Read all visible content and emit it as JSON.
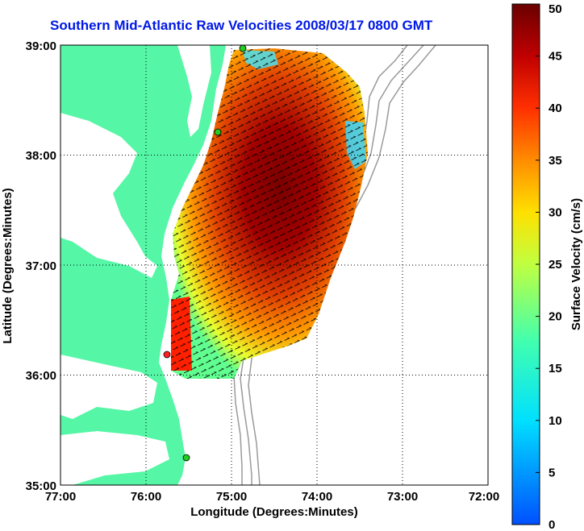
{
  "title": "Southern Mid-Atlantic Raw Velocities 2008/03/17 0800 GMT",
  "axes": {
    "xlabel": "Longitude (Degrees:Minutes)",
    "ylabel": "Latitude (Degrees:Minutes)",
    "x_ticks": [
      "77:00",
      "76:00",
      "75:00",
      "74:00",
      "73:00",
      "72:00"
    ],
    "y_ticks": [
      "39:00",
      "38:00",
      "37:00",
      "36:00",
      "35:00"
    ],
    "xlim": [
      -77,
      -72
    ],
    "ylim": [
      35,
      39
    ],
    "grid": "dotted"
  },
  "colorbar": {
    "label": "Surface Velocity (cm/s)",
    "ticks": [
      "0",
      "5",
      "10",
      "15",
      "20",
      "25",
      "30",
      "35",
      "40",
      "45",
      "50"
    ],
    "range": [
      0,
      50
    ],
    "colormap": "jet"
  },
  "colors": {
    "land": "#55f6a6",
    "water": "#ffffff",
    "title": "#0018e6",
    "station_active": "#22cc22",
    "station_inactive": "#ff2020",
    "bathymetry": "#9a9a9a",
    "vectors": "#000000"
  },
  "stations": [
    {
      "status": "active",
      "lon": -74.9,
      "lat": 39.0
    },
    {
      "status": "active",
      "lon": -75.15,
      "lat": 38.2
    },
    {
      "status": "inactive",
      "lon": -75.75,
      "lat": 36.17
    },
    {
      "status": "active",
      "lon": -75.5,
      "lat": 35.25
    }
  ]
}
